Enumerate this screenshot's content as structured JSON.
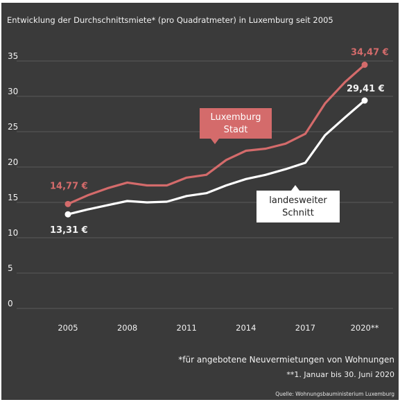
{
  "title": "Entwicklung der Durchschnittsmiete* (pro Quadratmeter) in Luxemburg seit 2005",
  "footnotes": {
    "note1": "*für angebotene Neuvermietungen von Wohnungen",
    "note2": "**1. Januar bis 30. Juni 2020",
    "source": "Quelle: Wohnungsbauministerium Luxemburg"
  },
  "colors": {
    "background": "#3a3a3a",
    "city": "#d46b6b",
    "national": "#ffffff",
    "grid": "#666666",
    "text": "#f2f2f2"
  },
  "chart_data": {
    "type": "line",
    "title": "Entwicklung der Durchschnittsmiete* (pro Quadratmeter) in Luxemburg seit 2005",
    "xlabel": "",
    "ylabel": "",
    "ylim": [
      0,
      35
    ],
    "yticks": [
      0,
      5,
      10,
      15,
      20,
      25,
      30,
      35
    ],
    "x": [
      2005,
      2006,
      2007,
      2008,
      2009,
      2010,
      2011,
      2012,
      2013,
      2014,
      2015,
      2016,
      2017,
      2018,
      2019,
      2020
    ],
    "xticks": [
      {
        "value": 2005,
        "label": "2005"
      },
      {
        "value": 2008,
        "label": "2008"
      },
      {
        "value": 2011,
        "label": "2011"
      },
      {
        "value": 2014,
        "label": "2014"
      },
      {
        "value": 2017,
        "label": "2017"
      },
      {
        "value": 2020,
        "label": "2020**"
      }
    ],
    "grid": "horizontal",
    "legend": "inline labels",
    "series": [
      {
        "name": "Luxemburg Stadt",
        "label_lines": [
          "Luxemburg",
          "Stadt"
        ],
        "color": "#d46b6b",
        "values": [
          14.77,
          16.0,
          17.0,
          17.8,
          17.4,
          17.4,
          18.5,
          18.9,
          21.0,
          22.3,
          22.6,
          23.3,
          24.7,
          29.0,
          32.0,
          34.47
        ],
        "start_label": "14,77 €",
        "end_label": "34,47 €"
      },
      {
        "name": "landesweiter Schnitt",
        "label_lines": [
          "landesweiter",
          "Schnitt"
        ],
        "color": "#ffffff",
        "values": [
          13.31,
          14.0,
          14.6,
          15.2,
          15.0,
          15.1,
          15.9,
          16.3,
          17.4,
          18.3,
          18.9,
          19.7,
          20.6,
          24.5,
          27.0,
          29.41
        ],
        "start_label": "13,31 €",
        "end_label": "29,41 €"
      }
    ]
  }
}
